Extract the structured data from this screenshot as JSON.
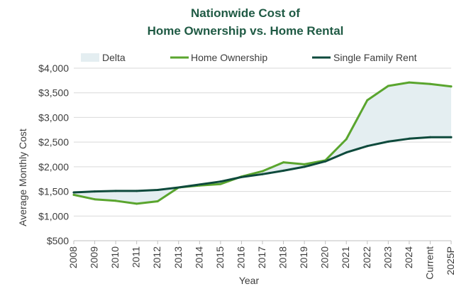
{
  "chart_data": {
    "type": "line",
    "title_line1": "Nationwide Cost of",
    "title_line2": "Home Ownership vs. Home Rental",
    "xlabel": "Year",
    "ylabel": "Average Monthly Cost",
    "categories": [
      "2008",
      "2009",
      "2010",
      "2011",
      "2012",
      "2013",
      "2014",
      "2015",
      "2016",
      "2017",
      "2018",
      "2019",
      "2020",
      "2021",
      "2022",
      "2023",
      "2024",
      "Current",
      "2025P"
    ],
    "ylim": [
      500,
      4000
    ],
    "yticks": [
      500,
      1000,
      1500,
      2000,
      2500,
      3000,
      3500,
      4000
    ],
    "ytick_labels": [
      "$500",
      "$1,000",
      "$1,500",
      "$2,000",
      "$2,500",
      "$3,000",
      "$3,500",
      "$4,000"
    ],
    "grid": "horizontal",
    "legend_position": "top",
    "series": [
      {
        "name": "Home Ownership",
        "color": "#5aa52e",
        "values": [
          1430,
          1340,
          1310,
          1250,
          1300,
          1580,
          1620,
          1650,
          1800,
          1910,
          2090,
          2050,
          2130,
          2560,
          3350,
          3640,
          3710,
          3680,
          3630
        ]
      },
      {
        "name": "Single Family Rent",
        "color": "#0e4a3c",
        "values": [
          1480,
          1500,
          1510,
          1510,
          1530,
          1580,
          1640,
          1700,
          1790,
          1850,
          1920,
          2000,
          2110,
          2290,
          2420,
          2510,
          2570,
          2600,
          2600
        ]
      }
    ],
    "delta": {
      "name": "Delta",
      "color": "#e4eef1"
    }
  }
}
